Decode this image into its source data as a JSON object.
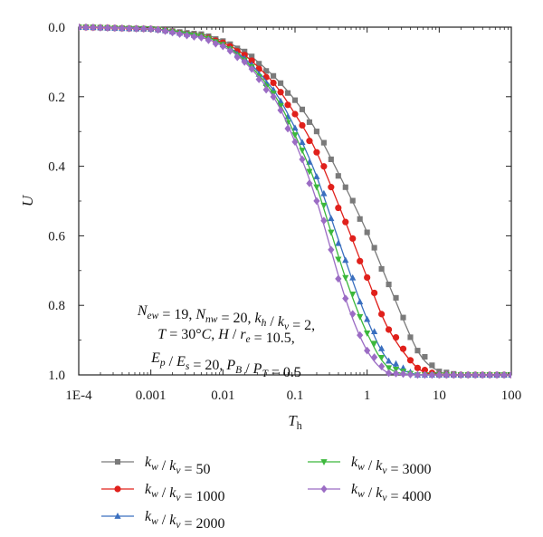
{
  "chart_data": {
    "type": "line",
    "x_scale": "log",
    "xlim": [
      0.0001,
      100
    ],
    "ylim": [
      0,
      1
    ],
    "y_reversed": true,
    "x_ticks": [
      0.0001,
      0.001,
      0.01,
      0.1,
      1,
      10,
      100
    ],
    "x_tick_labels": [
      "1E-4",
      "0.001",
      "0.01",
      "0.1",
      "1",
      "10",
      "100"
    ],
    "y_ticks": [
      0,
      0.2,
      0.4,
      0.6,
      0.8,
      1
    ],
    "y_tick_labels": [
      "0.0",
      "0.2",
      "0.4",
      "0.6",
      "0.8",
      "1.0"
    ],
    "xlabel": "Th",
    "ylabel": "U",
    "annotation": [
      "N_ew = 19, N_nw = 20, k_h / k_v = 2,",
      "T = 30°C, H / r_e = 10.5,",
      "E_p / E_s = 20, P_B / P_T = 0.5"
    ],
    "legend_position": "bottom",
    "grid": false,
    "series": [
      {
        "name": "k_w / k_v = 50",
        "color": "#7a7a7a",
        "marker": "square",
        "x": [
          0.0001,
          0.001,
          0.005,
          0.01,
          0.02,
          0.05,
          0.1,
          0.2,
          0.5,
          1,
          2,
          5,
          10,
          20,
          100
        ],
        "values": [
          0,
          0.005,
          0.02,
          0.04,
          0.07,
          0.14,
          0.21,
          0.3,
          0.46,
          0.59,
          0.74,
          0.93,
          0.99,
          1.0,
          1.0
        ]
      },
      {
        "name": "k_w / k_v = 1000",
        "color": "#e0201b",
        "marker": "circle",
        "x": [
          0.0001,
          0.001,
          0.005,
          0.01,
          0.02,
          0.05,
          0.1,
          0.2,
          0.5,
          1,
          2,
          5,
          10,
          20,
          100
        ],
        "values": [
          0,
          0.005,
          0.025,
          0.045,
          0.08,
          0.16,
          0.25,
          0.36,
          0.56,
          0.72,
          0.87,
          0.98,
          1.0,
          1.0,
          1.0
        ]
      },
      {
        "name": "k_w / k_v = 2000",
        "color": "#3a6fbf",
        "marker": "triangle-up",
        "x": [
          0.0001,
          0.001,
          0.005,
          0.01,
          0.02,
          0.05,
          0.1,
          0.2,
          0.5,
          1,
          2,
          5,
          10,
          20,
          100
        ],
        "values": [
          0,
          0.005,
          0.025,
          0.05,
          0.09,
          0.18,
          0.29,
          0.43,
          0.67,
          0.84,
          0.96,
          1.0,
          1.0,
          1.0,
          1.0
        ]
      },
      {
        "name": "k_w / k_v = 3000",
        "color": "#3cb83c",
        "marker": "triangle-down",
        "x": [
          0.0001,
          0.001,
          0.005,
          0.01,
          0.02,
          0.05,
          0.1,
          0.2,
          0.5,
          1,
          2,
          5,
          10,
          20,
          100
        ],
        "values": [
          0,
          0.005,
          0.025,
          0.05,
          0.095,
          0.19,
          0.31,
          0.46,
          0.72,
          0.88,
          0.98,
          1.0,
          1.0,
          1.0,
          1.0
        ]
      },
      {
        "name": "k_w / k_v = 4000",
        "color": "#9b6cc4",
        "marker": "diamond",
        "x": [
          0.0001,
          0.001,
          0.005,
          0.01,
          0.02,
          0.05,
          0.1,
          0.2,
          0.5,
          1,
          2,
          5,
          10,
          20,
          100
        ],
        "values": [
          0,
          0.005,
          0.03,
          0.055,
          0.1,
          0.2,
          0.33,
          0.5,
          0.78,
          0.93,
          0.995,
          1.0,
          1.0,
          1.0,
          1.0
        ]
      }
    ]
  }
}
